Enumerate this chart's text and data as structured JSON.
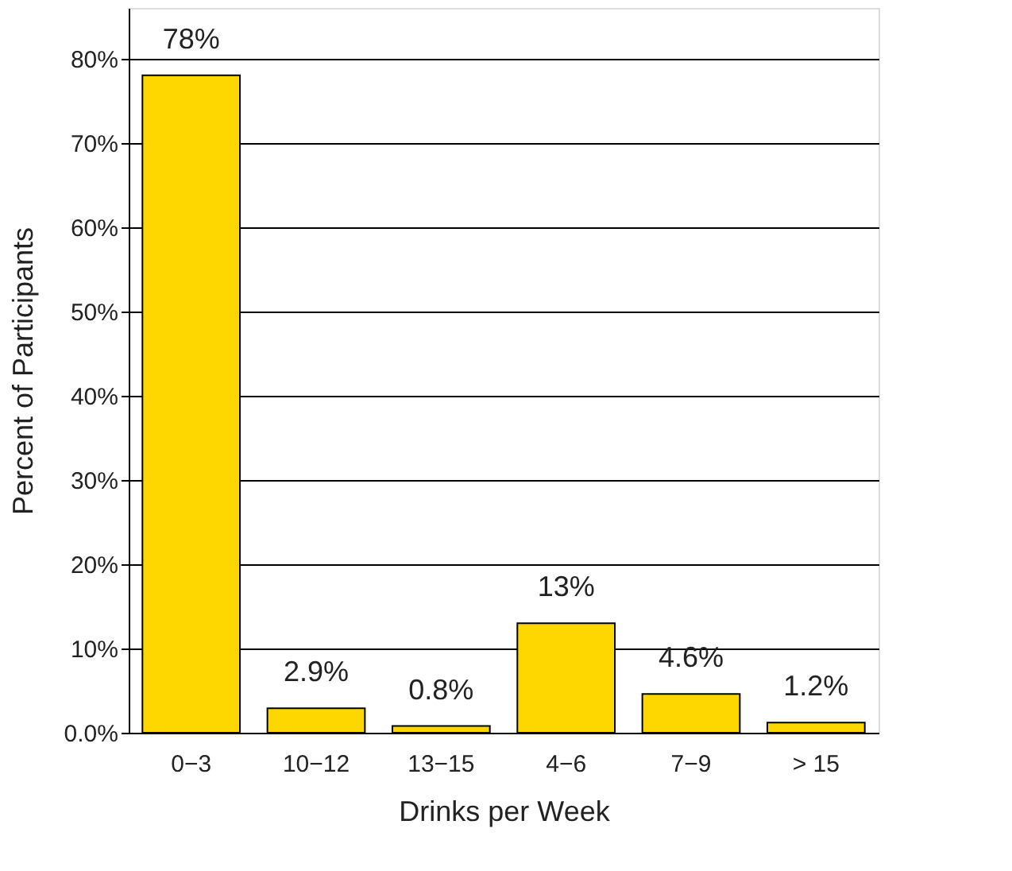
{
  "chart_data": {
    "type": "bar",
    "xlabel": "Drinks per Week",
    "ylabel": "Percent of Participants",
    "categories": [
      "0−3",
      "10−12",
      "13−15",
      "4−6",
      "7−9",
      "> 15"
    ],
    "values": [
      78,
      2.9,
      0.8,
      13,
      4.6,
      1.2
    ],
    "value_labels": [
      "78%",
      "2.9%",
      "0.8%",
      "13%",
      "4.6%",
      "1.2%"
    ],
    "color": "#ffd700",
    "ylim": [
      0,
      86
    ],
    "yticks": [
      {
        "value": 0,
        "label": "0.0%"
      },
      {
        "value": 10,
        "label": "10%"
      },
      {
        "value": 20,
        "label": "20%"
      },
      {
        "value": 30,
        "label": "30%"
      },
      {
        "value": 40,
        "label": "40%"
      },
      {
        "value": 50,
        "label": "50%"
      },
      {
        "value": 60,
        "label": "60%"
      },
      {
        "value": 70,
        "label": "70%"
      },
      {
        "value": 80,
        "label": "80%"
      }
    ],
    "grid": "y"
  }
}
